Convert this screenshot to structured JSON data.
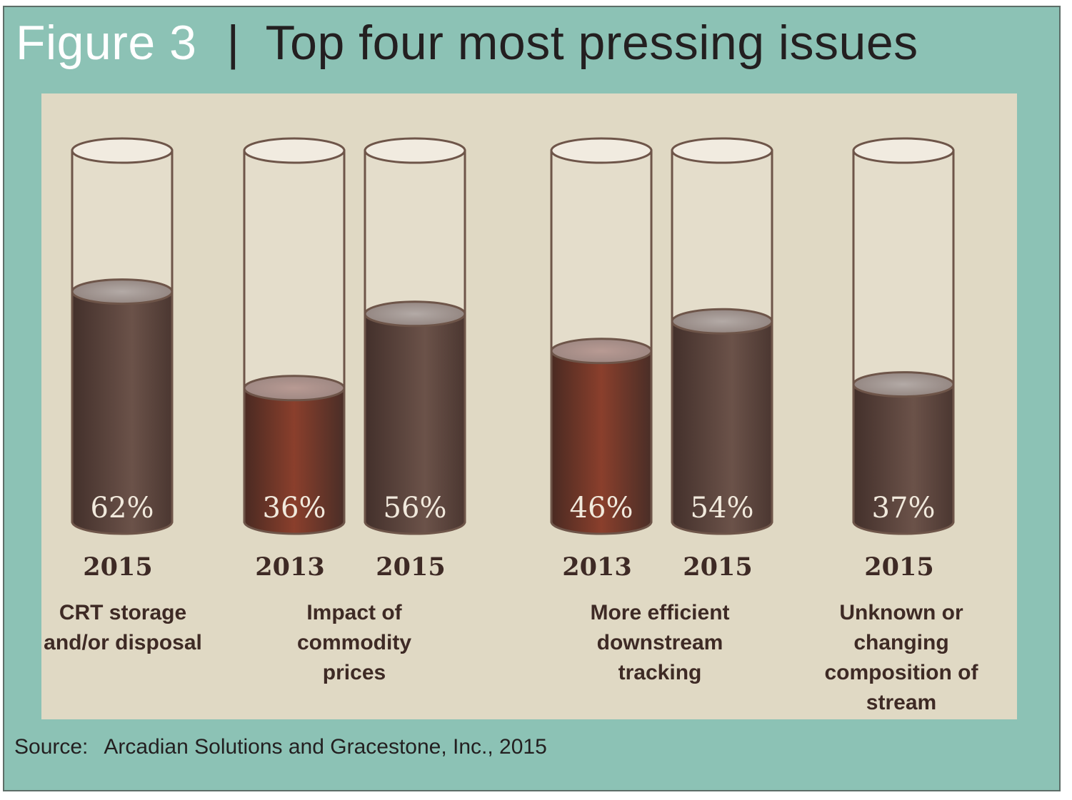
{
  "figure": {
    "label": "Figure 3",
    "separator": "|",
    "title": "Top four most pressing issues"
  },
  "source": {
    "label": "Source:",
    "text": "Arcadian Solutions and Gracestone, Inc., 2015"
  },
  "colors": {
    "frame": "#8cc2b5",
    "panel": "#e0d9c4",
    "fill_2013": "#7d3a28",
    "fill_2015": "#5a443d",
    "cylinder_outline": "#6e5549"
  },
  "chart_data": {
    "type": "bar",
    "style": "cylinder",
    "ylim": [
      0,
      100
    ],
    "groups": [
      {
        "category": "CRT storage and/or disposal",
        "bars": [
          {
            "year": "2015",
            "value": 62,
            "label": "62%"
          }
        ]
      },
      {
        "category": "Impact of commodity prices",
        "bars": [
          {
            "year": "2013",
            "value": 36,
            "label": "36%"
          },
          {
            "year": "2015",
            "value": 56,
            "label": "56%"
          }
        ]
      },
      {
        "category": "More efficient downstream tracking",
        "bars": [
          {
            "year": "2013",
            "value": 46,
            "label": "46%"
          },
          {
            "year": "2015",
            "value": 54,
            "label": "54%"
          }
        ]
      },
      {
        "category": "Unknown or changing composition of stream",
        "bars": [
          {
            "year": "2015",
            "value": 37,
            "label": "37%"
          }
        ]
      }
    ]
  }
}
